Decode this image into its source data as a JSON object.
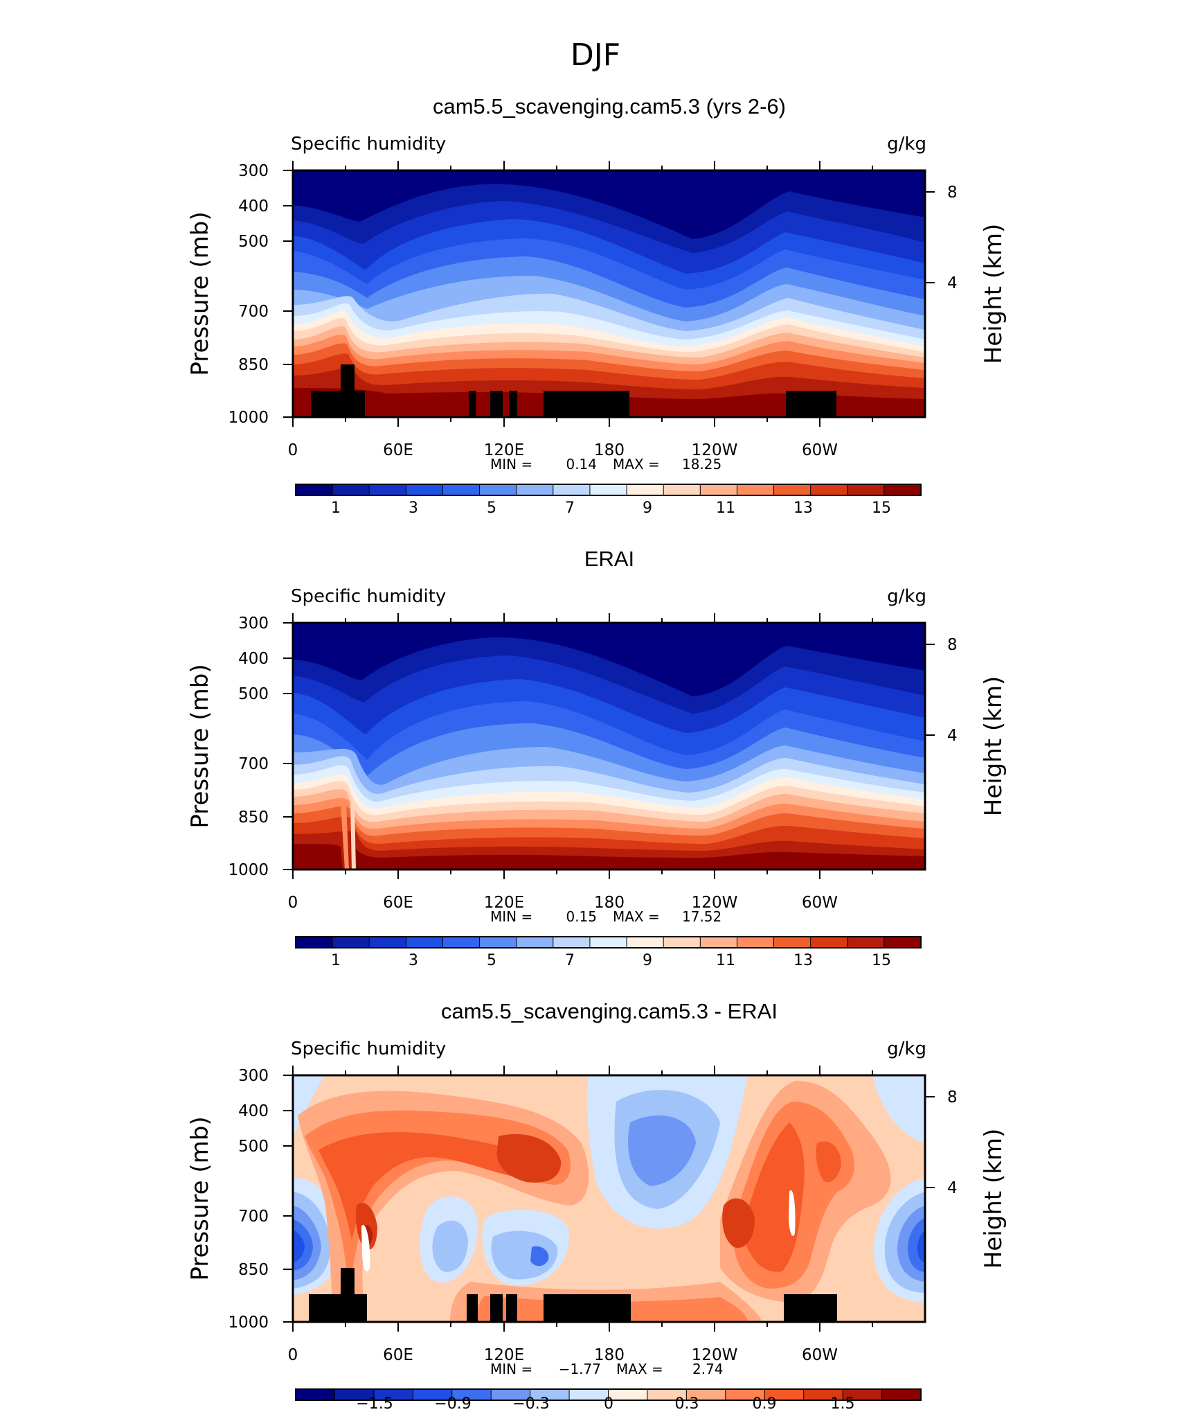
{
  "figure_title": "DJF",
  "chart_data": [
    {
      "type": "heatmap",
      "title": "cam5.5_scavenging.cam5.3 (yrs 2-6)",
      "left_string": "Specific humidity",
      "right_string": "g/kg",
      "ylabel": "Pressure (mb)",
      "ylabel_right": "Height (km)",
      "x_ticks": [
        "0",
        "60E",
        "120E",
        "180",
        "120W",
        "60W"
      ],
      "y_ticks": [
        "300",
        "400",
        "500",
        "700",
        "850",
        "1000"
      ],
      "y_right_ticks": [
        "8",
        "4"
      ],
      "min_label": "MIN =",
      "min_value": "0.14",
      "max_label": "MAX =",
      "max_value": "18.25",
      "colorbar_labels": [
        "1",
        "3",
        "5",
        "7",
        "9",
        "11",
        "13",
        "15"
      ],
      "colors": [
        "#00007f",
        "#0a1ea8",
        "#1433c8",
        "#1e50e6",
        "#3264f0",
        "#5a8cf5",
        "#8cb4fa",
        "#bed7fd",
        "#e1f0ff",
        "#fff0e1",
        "#ffd7bf",
        "#ffb48f",
        "#ff8c5f",
        "#f0602f",
        "#d93a14",
        "#b41e0a",
        "#8c0000"
      ]
    },
    {
      "type": "heatmap",
      "title": "ERAI",
      "left_string": "Specific humidity",
      "right_string": "g/kg",
      "ylabel": "Pressure (mb)",
      "ylabel_right": "Height (km)",
      "x_ticks": [
        "0",
        "60E",
        "120E",
        "180",
        "120W",
        "60W"
      ],
      "y_ticks": [
        "300",
        "400",
        "500",
        "700",
        "850",
        "1000"
      ],
      "y_right_ticks": [
        "8",
        "4"
      ],
      "min_label": "MIN =",
      "min_value": "0.15",
      "max_label": "MAX =",
      "max_value": "17.52",
      "colorbar_labels": [
        "1",
        "3",
        "5",
        "7",
        "9",
        "11",
        "13",
        "15"
      ],
      "colors": [
        "#00007f",
        "#0a1ea8",
        "#1433c8",
        "#1e50e6",
        "#3264f0",
        "#5a8cf5",
        "#8cb4fa",
        "#bed7fd",
        "#e1f0ff",
        "#fff0e1",
        "#ffd7bf",
        "#ffb48f",
        "#ff8c5f",
        "#f0602f",
        "#d93a14",
        "#b41e0a",
        "#8c0000"
      ]
    },
    {
      "type": "heatmap",
      "title": "cam5.5_scavenging.cam5.3 - ERAI",
      "left_string": "Specific humidity",
      "right_string": "g/kg",
      "ylabel": "Pressure (mb)",
      "ylabel_right": "Height (km)",
      "x_ticks": [
        "0",
        "60E",
        "120E",
        "180",
        "120W",
        "60W"
      ],
      "y_ticks": [
        "300",
        "400",
        "500",
        "700",
        "850",
        "1000"
      ],
      "y_right_ticks": [
        "8",
        "4"
      ],
      "min_label": "MIN =",
      "min_value": "−1.77",
      "max_label": "MAX =",
      "max_value": "2.74",
      "colorbar_labels": [
        "−1.5",
        "−0.9",
        "−0.3",
        "0",
        "0.3",
        "0.9",
        "1.5"
      ],
      "colors": [
        "#00007f",
        "#0a1ea8",
        "#1433c8",
        "#1e50e6",
        "#3c6ef0",
        "#6e96f5",
        "#a0c3fa",
        "#d2e6ff",
        "#fff0e1",
        "#ffd2b4",
        "#ffaa82",
        "#ff8250",
        "#f55a28",
        "#dc3c14",
        "#b41e0a",
        "#8c0000"
      ]
    }
  ]
}
